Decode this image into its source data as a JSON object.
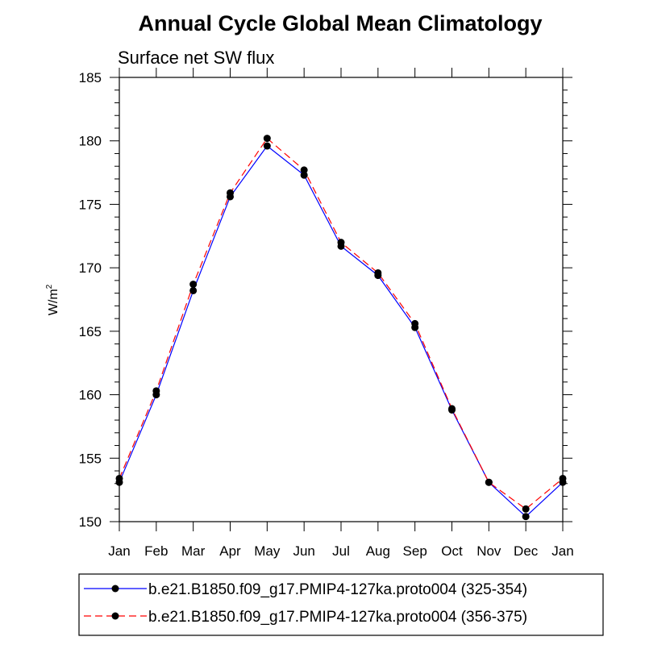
{
  "chart_data": {
    "type": "line",
    "title": "Annual Cycle Global Mean Climatology",
    "subtitle": "Surface net SW flux",
    "xlabel": "",
    "ylabel": "W/m",
    "ylabel_superscript": "2",
    "categories": [
      "Jan",
      "Feb",
      "Mar",
      "Apr",
      "May",
      "Jun",
      "Jul",
      "Aug",
      "Sep",
      "Oct",
      "Nov",
      "Dec",
      "Jan"
    ],
    "ylim": [
      150,
      185
    ],
    "yticks": [
      150,
      155,
      160,
      165,
      170,
      175,
      180,
      185
    ],
    "grid": false,
    "legend_position": "bottom",
    "series": [
      {
        "name": "b.e21.B1850.f09_g17.PMIP4-127ka.proto004 (325-354)",
        "color": "#0000ff",
        "dash": "solid",
        "marker": "filled-circle",
        "values": [
          153.1,
          160.0,
          168.2,
          175.6,
          179.6,
          177.3,
          171.7,
          169.4,
          165.3,
          158.8,
          153.1,
          150.4,
          153.1
        ]
      },
      {
        "name": "b.e21.B1850.f09_g17.PMIP4-127ka.proto004 (356-375)",
        "color": "#ff0000",
        "dash": "dashed",
        "marker": "filled-circle",
        "values": [
          153.4,
          160.3,
          168.7,
          175.9,
          180.2,
          177.7,
          172.0,
          169.6,
          165.6,
          158.9,
          153.1,
          151.0,
          153.4
        ]
      }
    ]
  }
}
